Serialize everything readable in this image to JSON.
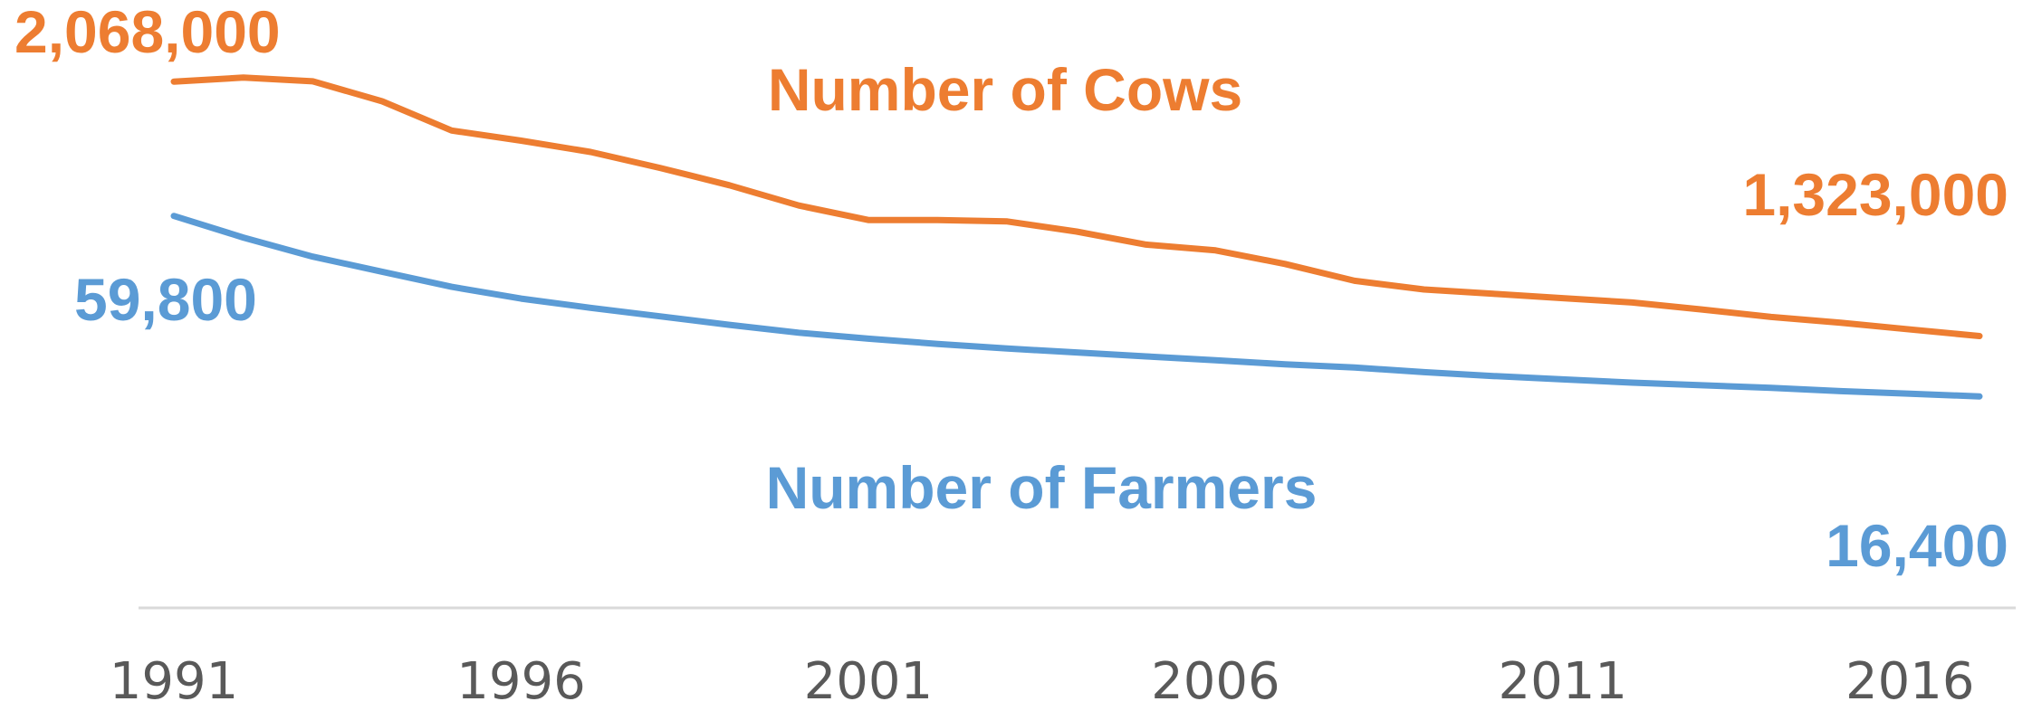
{
  "chart_data": {
    "type": "line",
    "x": [
      1991,
      1992,
      1993,
      1994,
      1995,
      1996,
      1997,
      1998,
      1999,
      2000,
      2001,
      2002,
      2003,
      2004,
      2005,
      2006,
      2007,
      2008,
      2009,
      2010,
      2011,
      2012,
      2013,
      2014,
      2015,
      2016,
      2017
    ],
    "x_tick_labels": [
      "1991",
      "1996",
      "2001",
      "2006",
      "2011",
      "2016"
    ],
    "colors": {
      "cows": "#ED7D31",
      "farmers": "#5B9BD5",
      "axis": "#D9D9D9",
      "ticks": "#595959"
    },
    "grid": false,
    "series": [
      {
        "key": "cows",
        "name": "Number of Cows",
        "values": [
          2068000,
          2082000,
          2069000,
          2000000,
          1899000,
          1864000,
          1825000,
          1770000,
          1710000,
          1640000,
          1590000,
          1590000,
          1585000,
          1550000,
          1505000,
          1485000,
          1438000,
          1380000,
          1350000,
          1335000,
          1320000,
          1305000,
          1281000,
          1255000,
          1235000,
          1212000,
          1323000
        ],
        "start_label": "2,068,000",
        "end_label": "1,323,000"
      },
      {
        "key": "farmers",
        "name": "Number of Farmers",
        "values": [
          59800,
          56500,
          53600,
          51300,
          49000,
          47200,
          45800,
          44500,
          43200,
          42000,
          41100,
          40300,
          39600,
          39000,
          38400,
          37800,
          37200,
          36700,
          36000,
          35400,
          34900,
          34400,
          34000,
          33600,
          33100,
          32700,
          16400
        ],
        "start_label": "59,800",
        "end_label": "16,400"
      }
    ]
  }
}
